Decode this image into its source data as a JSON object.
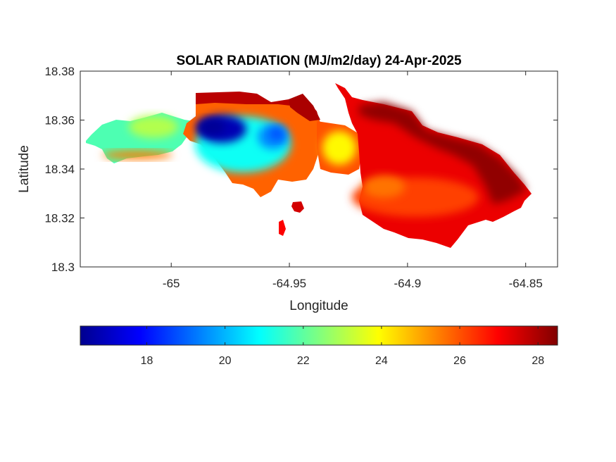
{
  "chart_data": {
    "type": "heatmap",
    "title": "SOLAR RADIATION (MJ/m2/day) 24-Apr-2025",
    "xlabel": "Longitude",
    "ylabel": "Latitude",
    "xlim": [
      -65.0385,
      -64.8365
    ],
    "ylim": [
      18.3,
      18.38
    ],
    "x_ticks": [
      -65,
      -64.95,
      -64.9,
      -64.85
    ],
    "x_tick_labels": [
      "-65",
      "-64.95",
      "-64.9",
      "-64.85"
    ],
    "y_ticks": [
      18.3,
      18.32,
      18.34,
      18.36,
      18.38
    ],
    "y_tick_labels": [
      "18.3",
      "18.32",
      "18.34",
      "18.36",
      "18.38"
    ],
    "colorbar": {
      "location": "bottom",
      "colormap": "jet",
      "range": [
        16.3,
        28.5
      ],
      "ticks": [
        18,
        20,
        22,
        24,
        26,
        28
      ],
      "tick_labels": [
        "18",
        "20",
        "22",
        "24",
        "26",
        "28"
      ]
    },
    "regions": [
      {
        "name": "west-lobe",
        "value": 21.8
      },
      {
        "name": "west-lobe-east-part",
        "value": 23.0
      },
      {
        "name": "west-lobe-south-edge",
        "value": 25.5
      },
      {
        "name": "central-block-north-edge",
        "value": 27.8
      },
      {
        "name": "central-block",
        "value": 25.8
      },
      {
        "name": "central-low-band",
        "value": 21.0
      },
      {
        "name": "central-minimum",
        "value": 16.8
      },
      {
        "name": "central-minimum-core",
        "value": 16.4
      },
      {
        "name": "central-secondary-low",
        "value": 19.5
      },
      {
        "name": "central-secondary-low-core",
        "value": 18.8
      },
      {
        "name": "isthmus",
        "value": 26.0
      },
      {
        "name": "isthmus-local",
        "value": 24.0
      },
      {
        "name": "east-lobe",
        "value": 27.2
      },
      {
        "name": "east-lobe-south",
        "value": 26.2
      },
      {
        "name": "east-lobe-patch",
        "value": 25.6
      },
      {
        "name": "east-lobe-northeast",
        "value": 28.3
      },
      {
        "name": "northeast-tip",
        "value": 28.0
      },
      {
        "name": "south-islet-1",
        "value": 27.5
      },
      {
        "name": "south-islet-2",
        "value": 27.0
      }
    ]
  }
}
